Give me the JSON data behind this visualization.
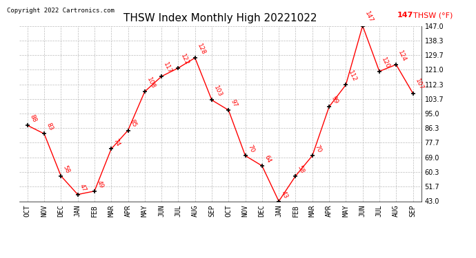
{
  "title": "THSW Index Monthly High 20221022",
  "copyright": "Copyright 2022 Cartronics.com",
  "months": [
    "OCT",
    "NOV",
    "DEC",
    "JAN",
    "FEB",
    "MAR",
    "APR",
    "MAY",
    "JUN",
    "JUL",
    "AUG",
    "SEP",
    "OCT",
    "NOV",
    "DEC",
    "JAN",
    "FEB",
    "MAR",
    "APR",
    "MAY",
    "JUN",
    "JUL",
    "AUG",
    "SEP"
  ],
  "values": [
    88,
    83,
    58,
    47,
    49,
    74,
    85,
    108,
    117,
    122,
    128,
    103,
    97,
    70,
    64,
    43,
    58,
    70,
    99,
    112,
    147,
    120,
    124,
    107
  ],
  "line_color": "red",
  "marker_color": "black",
  "label_color": "red",
  "ylim": [
    43.0,
    147.0
  ],
  "yticks": [
    43.0,
    51.7,
    60.3,
    69.0,
    77.7,
    86.3,
    95.0,
    103.7,
    112.3,
    121.0,
    129.7,
    138.3,
    147.0
  ],
  "background_color": "white",
  "grid_color": "#bbbbbb",
  "title_fontsize": 11,
  "legend_label": "THSW (°F)",
  "legend_value": "147"
}
